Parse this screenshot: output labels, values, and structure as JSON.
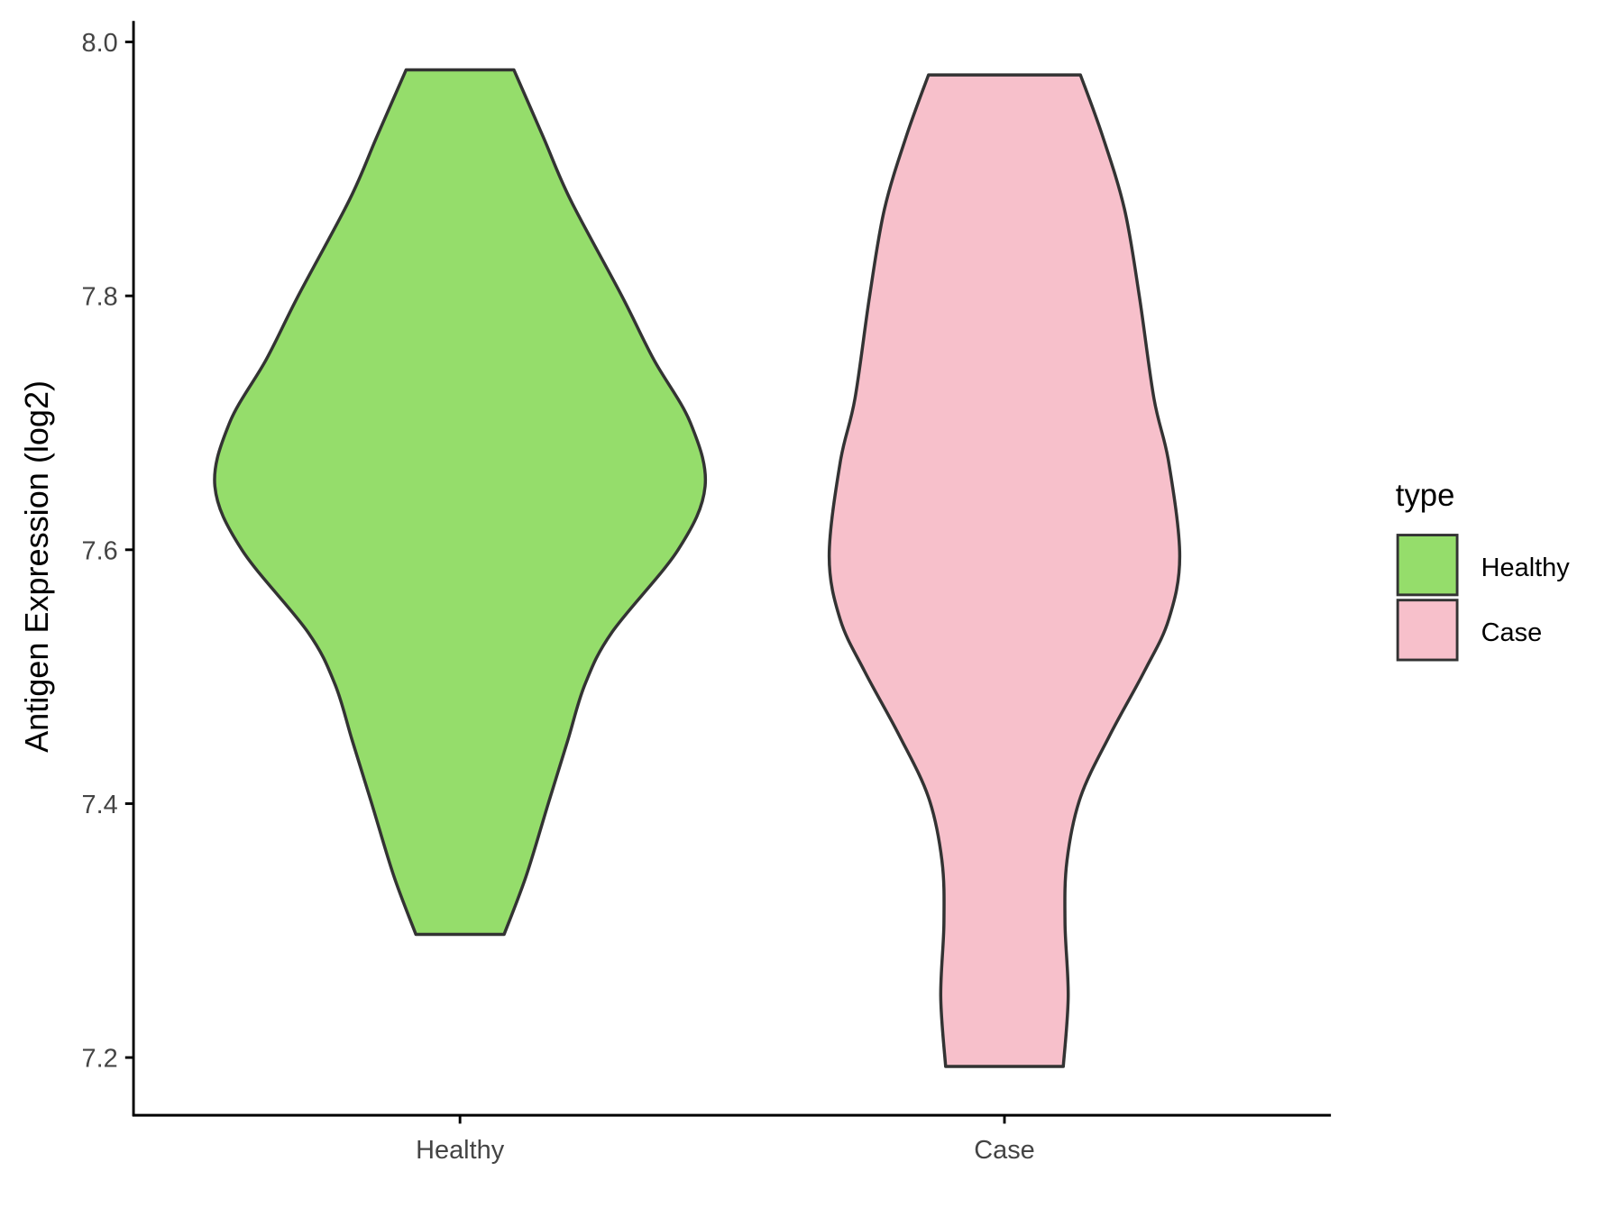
{
  "chart_data": {
    "type": "violin",
    "title": "",
    "xlabel": "",
    "ylabel": "Antigen Expression (log2)",
    "ylim": [
      7.155,
      8.017
    ],
    "yticks": [
      "7.2",
      "7.4",
      "7.6",
      "7.8",
      "8.0"
    ],
    "ytick_values": [
      7.2,
      7.4,
      7.6,
      7.8,
      8.0
    ],
    "categories": [
      "Healthy",
      "Case"
    ],
    "grid": false,
    "legend": {
      "title": "type",
      "placement": "right",
      "entries": [
        "Healthy",
        "Case"
      ]
    },
    "series": [
      {
        "name": "Healthy",
        "color": "#95DD6B",
        "min": 7.297,
        "max": 7.978,
        "density_profile": [
          [
            7.978,
            0.22
          ],
          [
            7.925,
            0.34
          ],
          [
            7.876,
            0.45
          ],
          [
            7.8,
            0.66
          ],
          [
            7.75,
            0.79
          ],
          [
            7.7,
            0.94
          ],
          [
            7.65,
            1.0
          ],
          [
            7.6,
            0.89
          ],
          [
            7.535,
            0.62
          ],
          [
            7.494,
            0.51
          ],
          [
            7.45,
            0.44
          ],
          [
            7.4,
            0.36
          ],
          [
            7.343,
            0.27
          ],
          [
            7.297,
            0.18
          ]
        ]
      },
      {
        "name": "Case",
        "color": "#F7C0CB",
        "min": 7.193,
        "max": 7.974,
        "density_profile": [
          [
            7.974,
            0.31
          ],
          [
            7.926,
            0.4
          ],
          [
            7.868,
            0.49
          ],
          [
            7.8,
            0.55
          ],
          [
            7.719,
            0.61
          ],
          [
            7.669,
            0.67
          ],
          [
            7.595,
            0.715
          ],
          [
            7.545,
            0.67
          ],
          [
            7.504,
            0.57
          ],
          [
            7.454,
            0.43
          ],
          [
            7.405,
            0.31
          ],
          [
            7.355,
            0.255
          ],
          [
            7.306,
            0.247
          ],
          [
            7.248,
            0.26
          ],
          [
            7.193,
            0.24
          ]
        ]
      }
    ]
  }
}
